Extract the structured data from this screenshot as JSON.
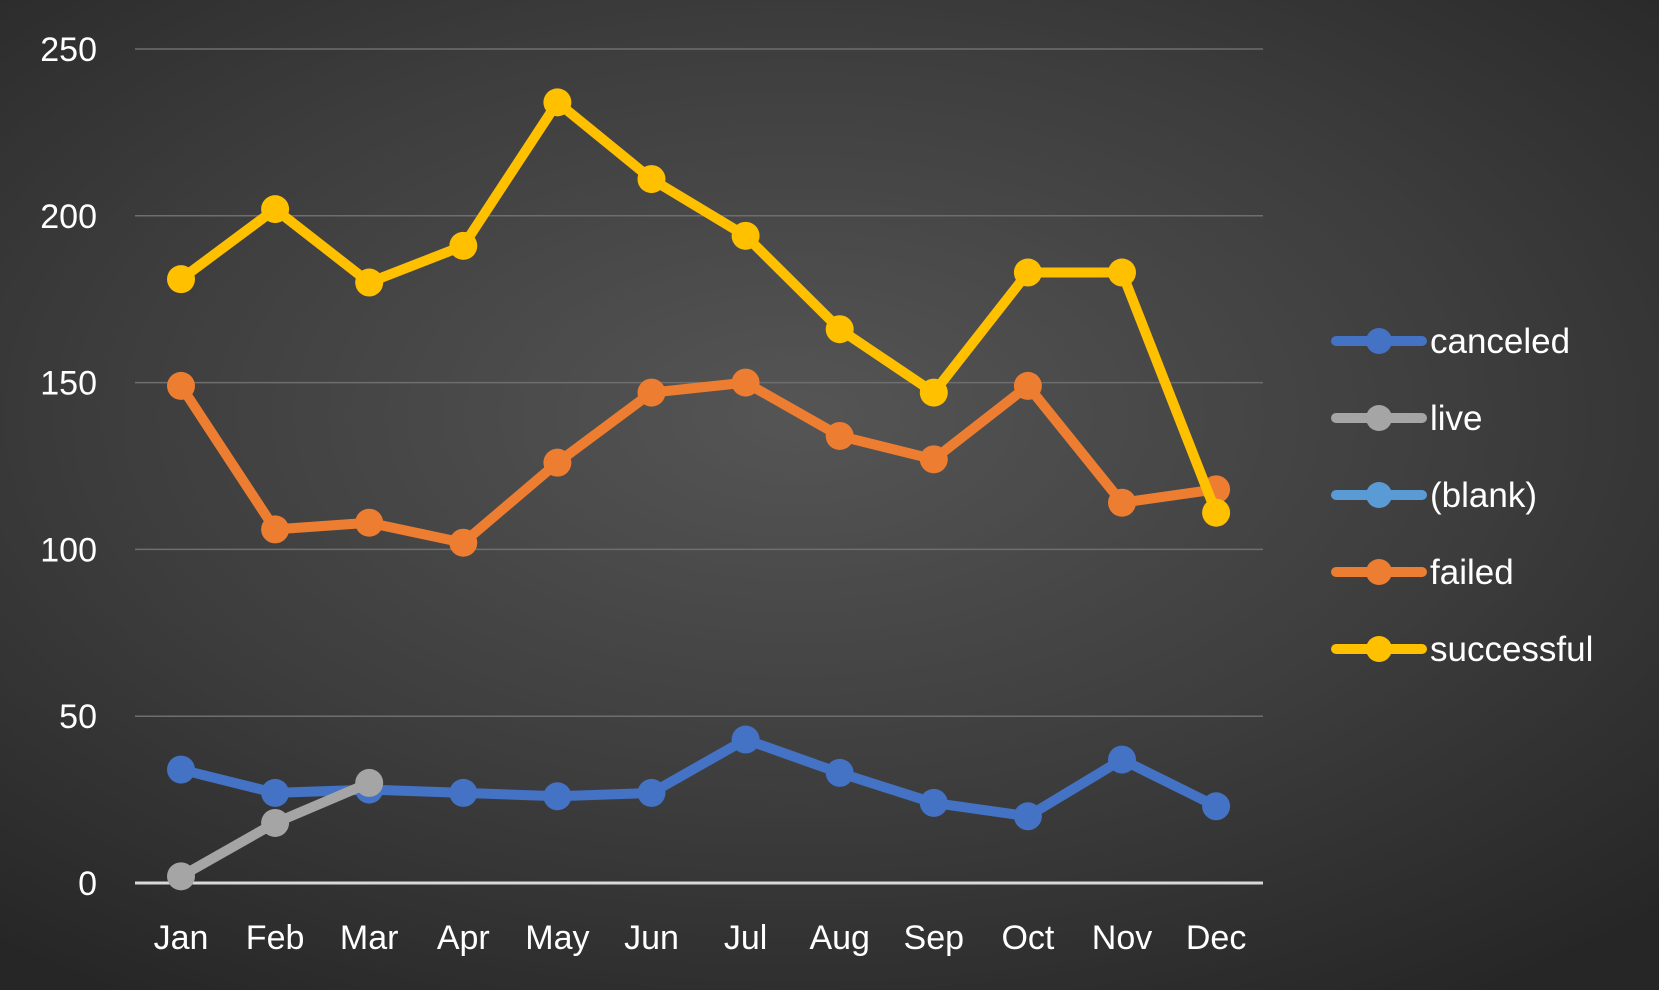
{
  "chart_data": {
    "type": "line",
    "categories": [
      "Jan",
      "Feb",
      "Mar",
      "Apr",
      "May",
      "Jun",
      "Jul",
      "Aug",
      "Sep",
      "Oct",
      "Nov",
      "Dec"
    ],
    "ylim": [
      0,
      250
    ],
    "yticks": [
      0,
      50,
      100,
      150,
      200,
      250
    ],
    "grid": true,
    "legend_position": "right",
    "series": [
      {
        "name": "canceled",
        "color": "#4472C4",
        "values": [
          34,
          27,
          28,
          27,
          26,
          27,
          43,
          33,
          24,
          20,
          37,
          23
        ]
      },
      {
        "name": "live",
        "color": "#A5A5A5",
        "values": [
          2,
          18,
          30,
          null,
          null,
          null,
          null,
          null,
          null,
          null,
          null,
          null
        ]
      },
      {
        "name": "(blank)",
        "color": "#5B9BD5",
        "values": [
          null,
          null,
          null,
          null,
          null,
          null,
          null,
          null,
          null,
          null,
          null,
          null
        ]
      },
      {
        "name": "failed",
        "color": "#ED7D31",
        "values": [
          149,
          106,
          108,
          102,
          126,
          147,
          150,
          134,
          127,
          149,
          114,
          118
        ]
      },
      {
        "name": "successful",
        "color": "#FFC000",
        "values": [
          181,
          202,
          180,
          191,
          234,
          211,
          194,
          166,
          147,
          183,
          183,
          111
        ]
      }
    ]
  }
}
